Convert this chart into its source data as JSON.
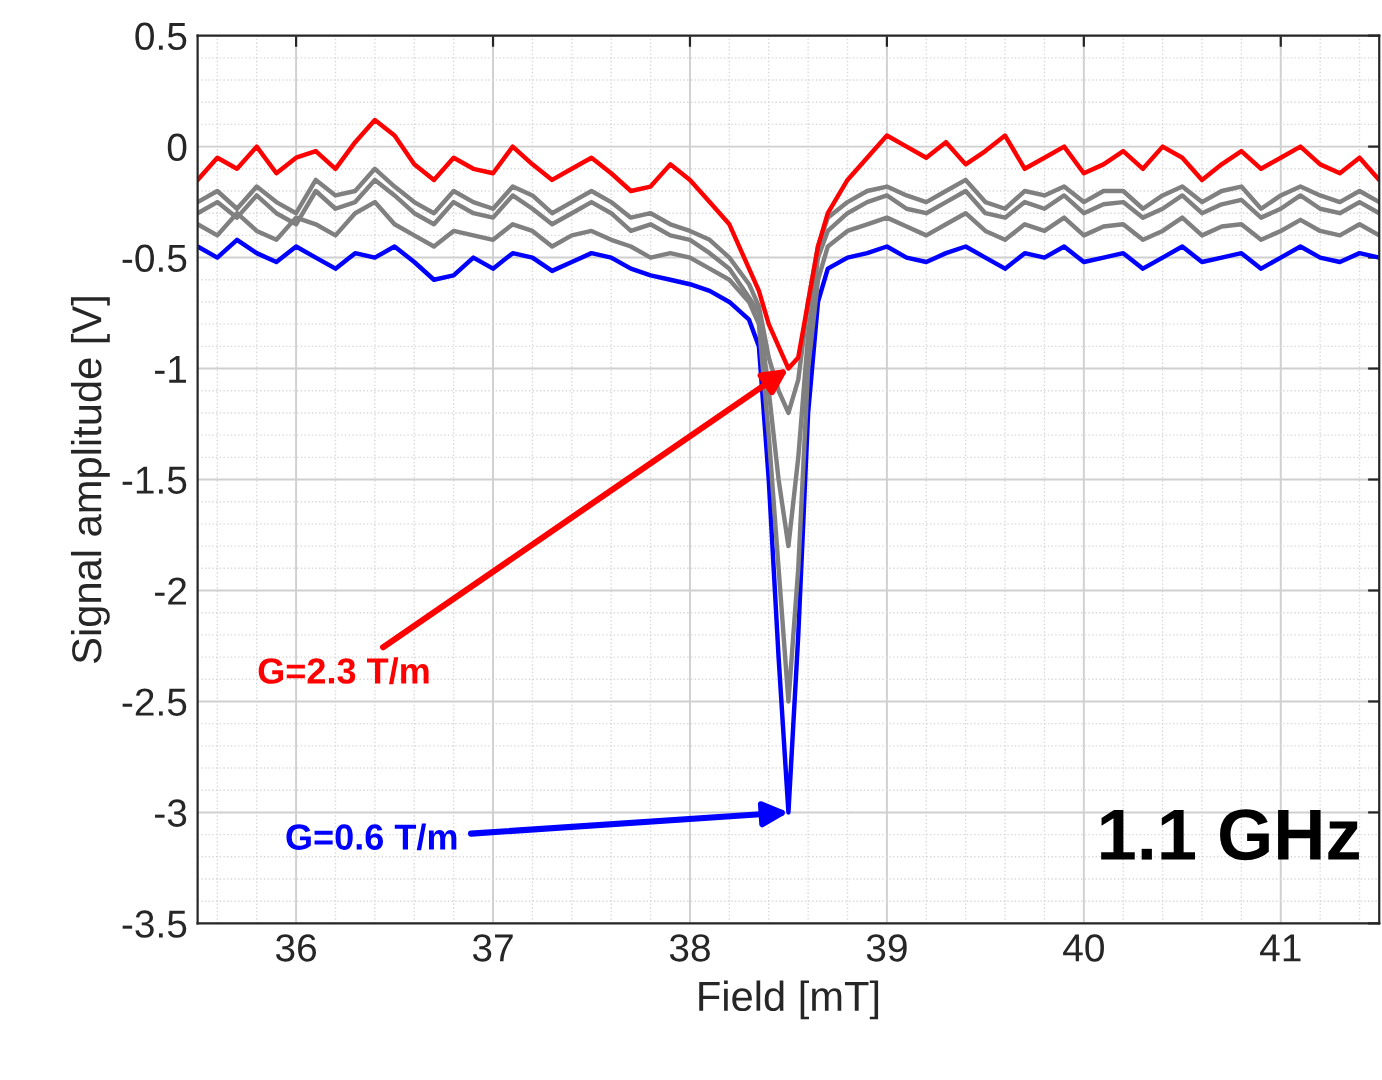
{
  "chart_data": {
    "type": "line",
    "xlabel": "Field [mT]",
    "ylabel": "Signal amplitude [V]",
    "x": [
      35.5,
      35.6,
      35.7,
      35.8,
      35.9,
      36.0,
      36.1,
      36.2,
      36.3,
      36.4,
      36.5,
      36.6,
      36.7,
      36.8,
      36.9,
      37.0,
      37.1,
      37.2,
      37.3,
      37.4,
      37.5,
      37.6,
      37.7,
      37.8,
      37.9,
      38.0,
      38.1,
      38.2,
      38.3,
      38.35,
      38.4,
      38.45,
      38.5,
      38.55,
      38.6,
      38.65,
      38.7,
      38.8,
      38.9,
      39.0,
      39.1,
      39.2,
      39.3,
      39.4,
      39.5,
      39.6,
      39.7,
      39.8,
      39.9,
      40.0,
      40.1,
      40.2,
      40.3,
      40.4,
      40.5,
      40.6,
      40.7,
      40.8,
      40.9,
      41.0,
      41.1,
      41.2,
      41.3,
      41.4,
      41.5
    ],
    "series": [
      {
        "name": "G=0.6 T/m",
        "color": "#0000ff",
        "values": [
          -0.45,
          -0.5,
          -0.42,
          -0.48,
          -0.52,
          -0.45,
          -0.5,
          -0.55,
          -0.48,
          -0.5,
          -0.45,
          -0.52,
          -0.6,
          -0.58,
          -0.5,
          -0.55,
          -0.48,
          -0.5,
          -0.56,
          -0.52,
          -0.48,
          -0.5,
          -0.55,
          -0.58,
          -0.6,
          -0.62,
          -0.65,
          -0.7,
          -0.78,
          -0.9,
          -1.5,
          -2.3,
          -3.0,
          -2.2,
          -1.2,
          -0.7,
          -0.55,
          -0.5,
          -0.48,
          -0.45,
          -0.5,
          -0.52,
          -0.48,
          -0.45,
          -0.5,
          -0.55,
          -0.48,
          -0.5,
          -0.45,
          -0.52,
          -0.5,
          -0.48,
          -0.55,
          -0.5,
          -0.45,
          -0.52,
          -0.5,
          -0.48,
          -0.55,
          -0.5,
          -0.45,
          -0.5,
          -0.52,
          -0.48,
          -0.5
        ]
      },
      {
        "color": "#808080",
        "values": [
          -0.35,
          -0.4,
          -0.3,
          -0.38,
          -0.42,
          -0.32,
          -0.35,
          -0.4,
          -0.3,
          -0.25,
          -0.35,
          -0.4,
          -0.45,
          -0.38,
          -0.4,
          -0.42,
          -0.35,
          -0.38,
          -0.45,
          -0.4,
          -0.38,
          -0.42,
          -0.45,
          -0.5,
          -0.48,
          -0.5,
          -0.55,
          -0.6,
          -0.7,
          -0.8,
          -1.3,
          -1.9,
          -2.5,
          -1.9,
          -1.0,
          -0.6,
          -0.45,
          -0.38,
          -0.35,
          -0.32,
          -0.36,
          -0.4,
          -0.35,
          -0.3,
          -0.38,
          -0.42,
          -0.35,
          -0.38,
          -0.32,
          -0.4,
          -0.36,
          -0.35,
          -0.42,
          -0.38,
          -0.32,
          -0.4,
          -0.36,
          -0.35,
          -0.42,
          -0.38,
          -0.33,
          -0.38,
          -0.4,
          -0.35,
          -0.4
        ]
      },
      {
        "color": "#808080",
        "values": [
          -0.3,
          -0.25,
          -0.32,
          -0.22,
          -0.3,
          -0.35,
          -0.2,
          -0.28,
          -0.25,
          -0.15,
          -0.22,
          -0.3,
          -0.35,
          -0.25,
          -0.3,
          -0.32,
          -0.22,
          -0.28,
          -0.35,
          -0.3,
          -0.25,
          -0.3,
          -0.38,
          -0.35,
          -0.4,
          -0.42,
          -0.48,
          -0.55,
          -0.68,
          -0.75,
          -1.1,
          -1.5,
          -1.8,
          -1.4,
          -0.85,
          -0.5,
          -0.38,
          -0.3,
          -0.25,
          -0.22,
          -0.28,
          -0.3,
          -0.25,
          -0.2,
          -0.3,
          -0.32,
          -0.25,
          -0.28,
          -0.22,
          -0.3,
          -0.26,
          -0.25,
          -0.32,
          -0.28,
          -0.22,
          -0.3,
          -0.26,
          -0.24,
          -0.32,
          -0.28,
          -0.22,
          -0.28,
          -0.3,
          -0.25,
          -0.3
        ]
      },
      {
        "color": "#808080",
        "values": [
          -0.25,
          -0.2,
          -0.28,
          -0.18,
          -0.25,
          -0.3,
          -0.15,
          -0.22,
          -0.2,
          -0.1,
          -0.18,
          -0.25,
          -0.3,
          -0.2,
          -0.25,
          -0.28,
          -0.18,
          -0.22,
          -0.3,
          -0.25,
          -0.2,
          -0.25,
          -0.32,
          -0.3,
          -0.35,
          -0.38,
          -0.42,
          -0.5,
          -0.62,
          -0.72,
          -0.95,
          -1.1,
          -1.2,
          -1.05,
          -0.7,
          -0.45,
          -0.32,
          -0.25,
          -0.2,
          -0.18,
          -0.22,
          -0.25,
          -0.2,
          -0.15,
          -0.25,
          -0.28,
          -0.2,
          -0.22,
          -0.18,
          -0.25,
          -0.2,
          -0.2,
          -0.28,
          -0.22,
          -0.18,
          -0.25,
          -0.2,
          -0.18,
          -0.28,
          -0.22,
          -0.18,
          -0.22,
          -0.25,
          -0.2,
          -0.25
        ]
      },
      {
        "name": "G=2.3 T/m",
        "color": "#ff0000",
        "values": [
          -0.15,
          -0.05,
          -0.1,
          0.0,
          -0.12,
          -0.05,
          -0.02,
          -0.1,
          0.02,
          0.12,
          0.05,
          -0.08,
          -0.15,
          -0.05,
          -0.1,
          -0.12,
          0.0,
          -0.08,
          -0.15,
          -0.1,
          -0.05,
          -0.12,
          -0.2,
          -0.18,
          -0.08,
          -0.15,
          -0.25,
          -0.35,
          -0.55,
          -0.65,
          -0.8,
          -0.9,
          -1.0,
          -0.95,
          -0.7,
          -0.45,
          -0.3,
          -0.15,
          -0.05,
          0.05,
          0.0,
          -0.05,
          0.02,
          -0.08,
          -0.02,
          0.05,
          -0.1,
          -0.05,
          0.0,
          -0.12,
          -0.08,
          -0.02,
          -0.1,
          0.0,
          -0.05,
          -0.15,
          -0.08,
          -0.02,
          -0.1,
          -0.05,
          0.0,
          -0.08,
          -0.12,
          -0.05,
          -0.15
        ]
      }
    ],
    "xlim": [
      35.5,
      41.5
    ],
    "xticks": [
      36,
      37,
      38,
      39,
      40,
      41
    ],
    "ylim": [
      -3.5,
      0.5
    ],
    "yticks": [
      -3.5,
      -3,
      -2.5,
      -2,
      -1.5,
      -1,
      -0.5,
      0,
      0.5
    ],
    "grid": true,
    "marker": "none",
    "line_style": "solid",
    "annotations": [
      "1.1 GHz"
    ]
  }
}
